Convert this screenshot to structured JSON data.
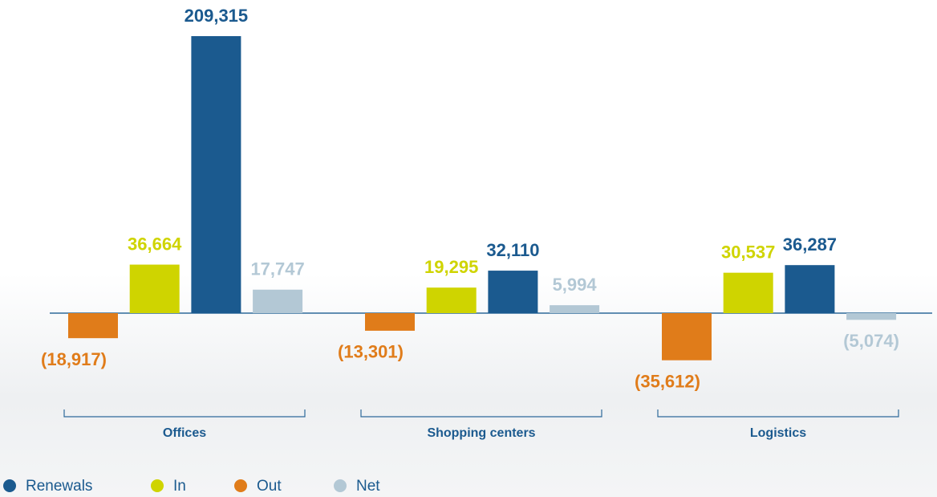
{
  "chart_data": {
    "type": "bar",
    "categories": [
      "Offices",
      "Shopping centers",
      "Logistics"
    ],
    "series": [
      {
        "name": "Renewals",
        "color": "#1b5a8f",
        "values": [
          209315,
          32110,
          36287
        ],
        "value_labels": [
          "209,315",
          "32,110",
          "36,287"
        ]
      },
      {
        "name": "In",
        "color": "#cfd400",
        "values": [
          36664,
          19295,
          30537
        ],
        "value_labels": [
          "36,664",
          "19,295",
          "30,537"
        ]
      },
      {
        "name": "Out",
        "color": "#e07c1a",
        "values": [
          -18917,
          -13301,
          -35612
        ],
        "value_labels": [
          "(18,917)",
          "(13,301)",
          "(35,612)"
        ]
      },
      {
        "name": "Net",
        "color": "#b3c8d5",
        "values": [
          17747,
          5994,
          -5074
        ],
        "value_labels": [
          "17,747",
          "5,994",
          "(5,074)"
        ]
      }
    ]
  }
}
